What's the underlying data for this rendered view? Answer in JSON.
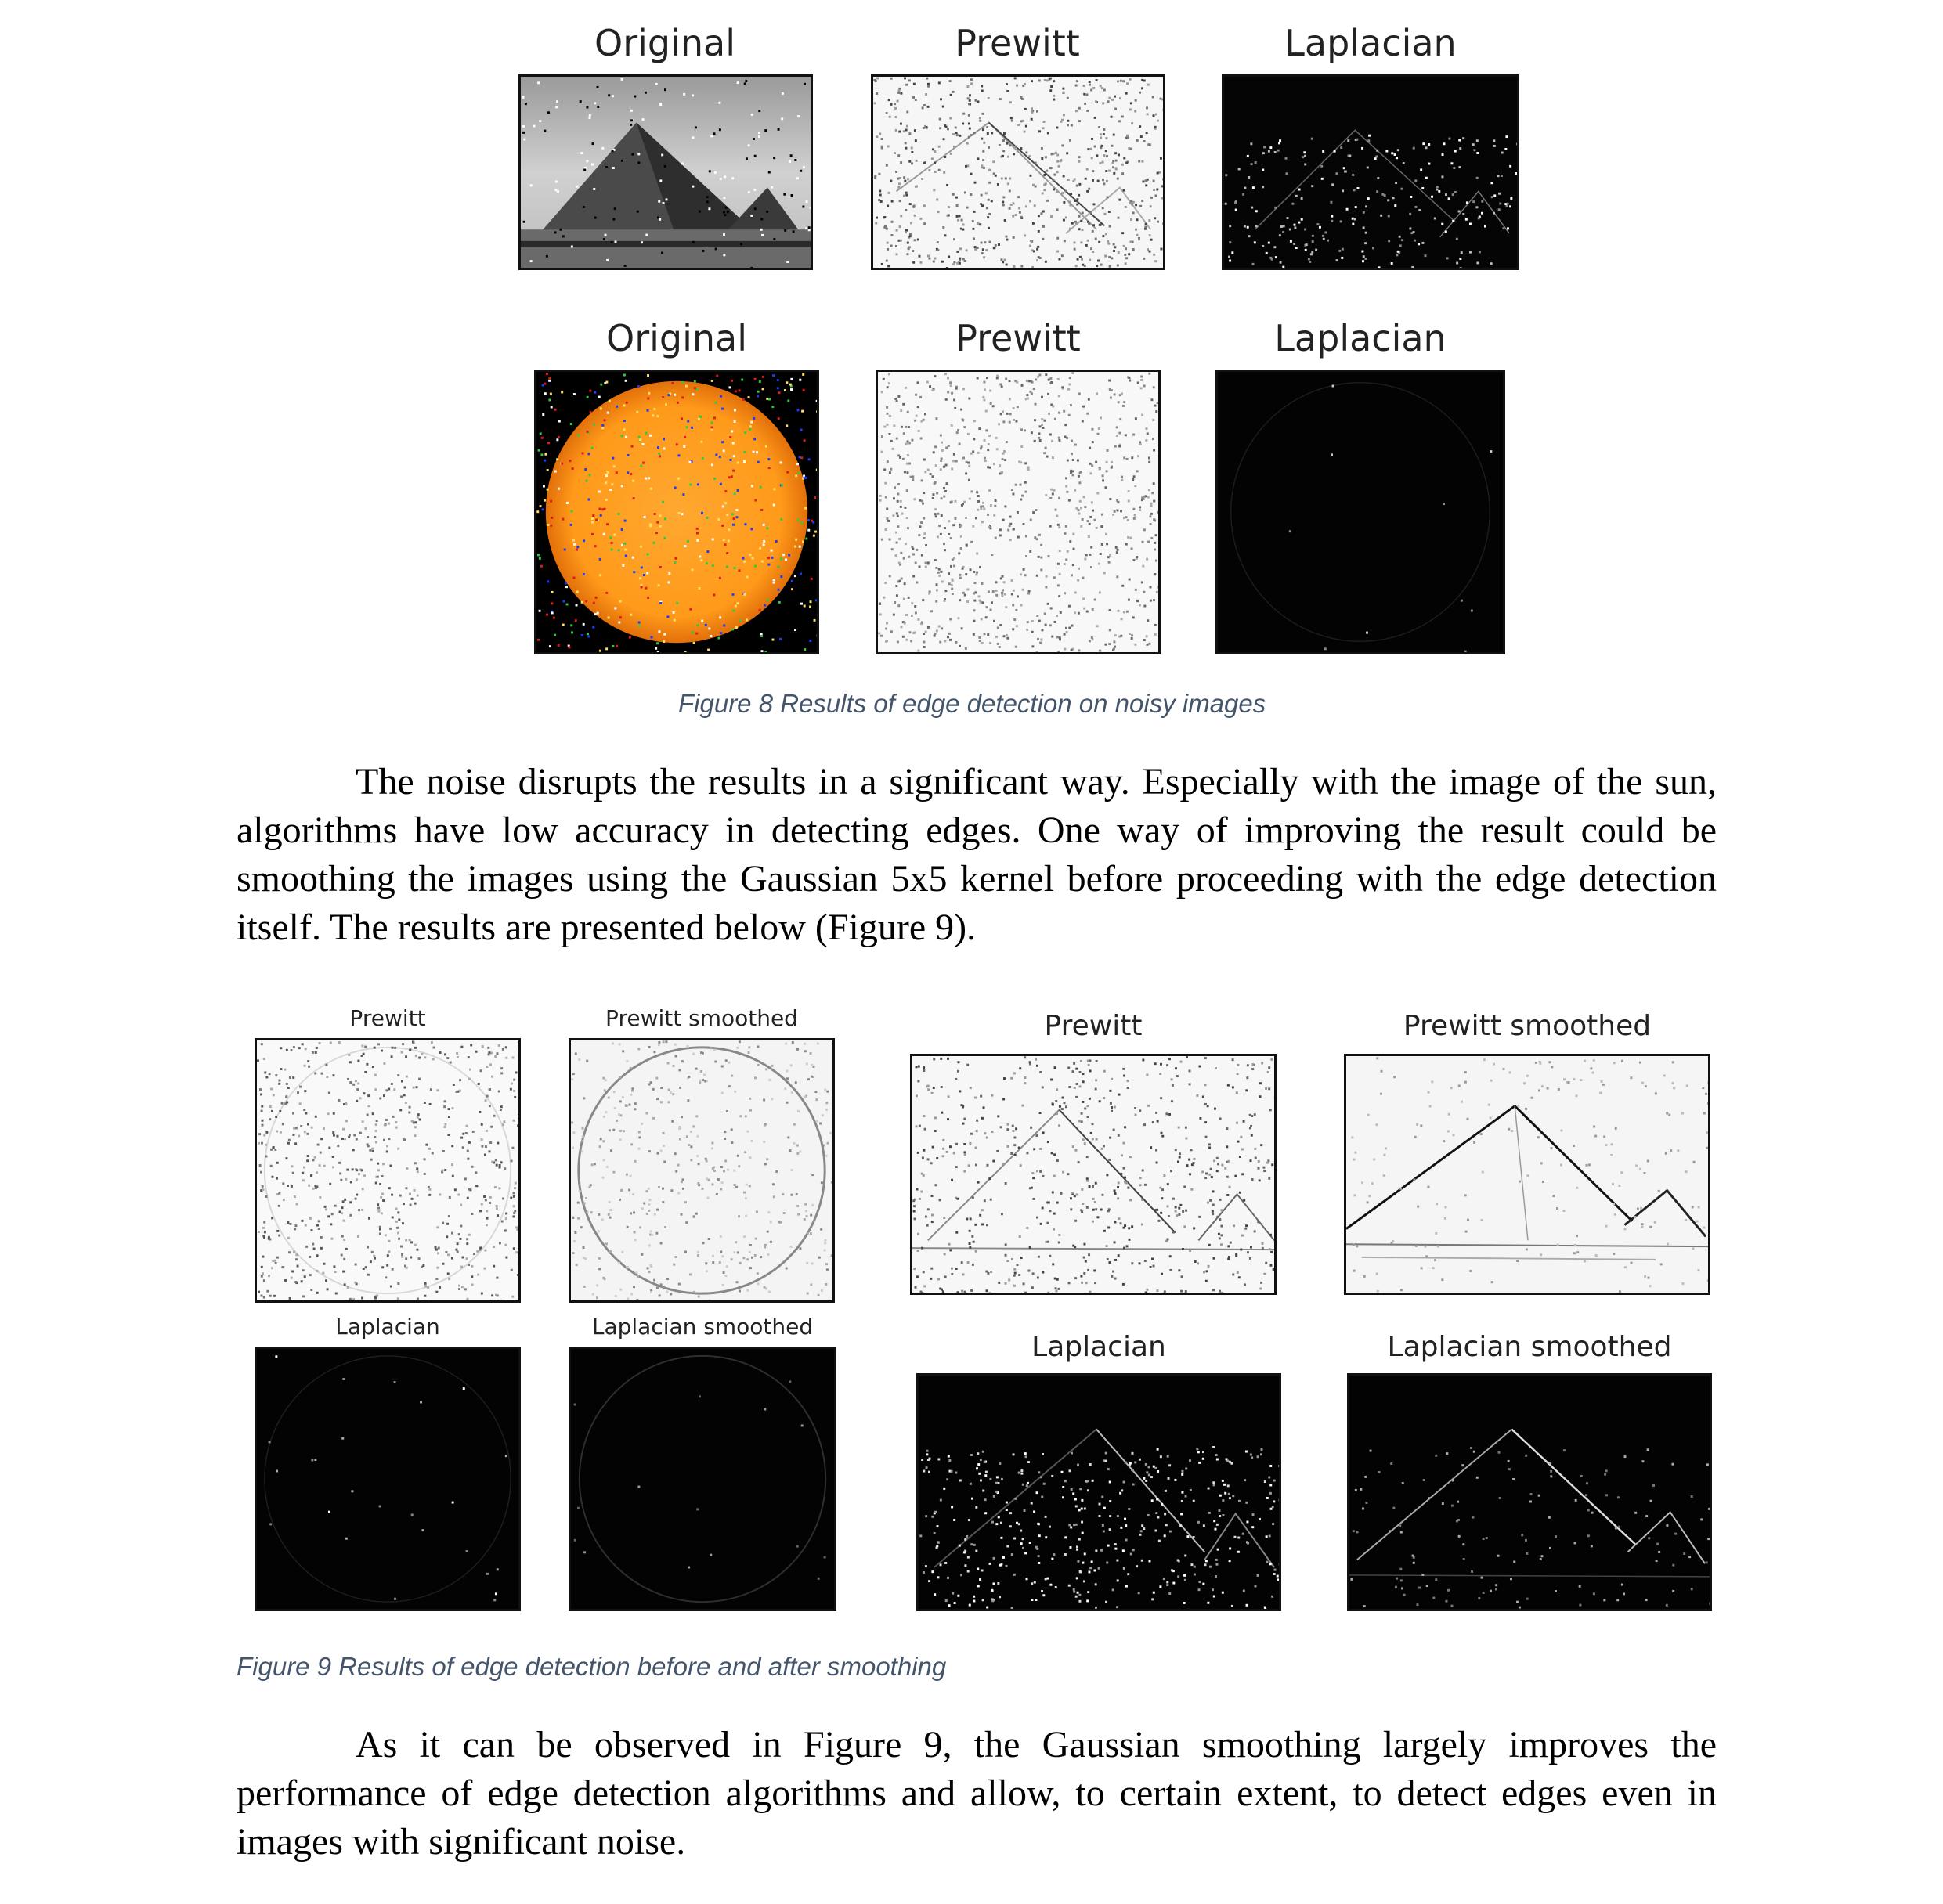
{
  "figure8": {
    "row1": {
      "original_title": "Original",
      "prewitt_title": "Prewitt",
      "laplacian_title": "Laplacian"
    },
    "row2": {
      "original_title": "Original",
      "prewitt_title": "Prewitt",
      "laplacian_title": "Laplacian"
    },
    "caption": "Figure 8 Results of edge detection on noisy images"
  },
  "paragraph1": "The noise disrupts the results in a significant way. Especially with the image of the sun, algorithms have low accuracy in detecting edges. One way of improving the result could be smoothing the images using the Gaussian 5x5 kernel before proceeding with the edge detection itself. The results are presented below (Figure 9).",
  "figure9": {
    "sun": {
      "prewitt_title": "Prewitt",
      "prewitt_smoothed_title": "Prewitt smoothed",
      "laplacian_title": "Laplacian",
      "laplacian_smoothed_title": "Laplacian smoothed"
    },
    "pyramid": {
      "prewitt_title": "Prewitt",
      "prewitt_smoothed_title": "Prewitt smoothed",
      "laplacian_title": "Laplacian",
      "laplacian_smoothed_title": "Laplacian smoothed"
    },
    "caption": "Figure 9 Results of edge detection before and after smoothing"
  },
  "paragraph2": "As it can be observed in Figure 9, the Gaussian smoothing largely improves the performance of edge detection algorithms and allow, to certain extent, to detect edges even in images with significant noise."
}
